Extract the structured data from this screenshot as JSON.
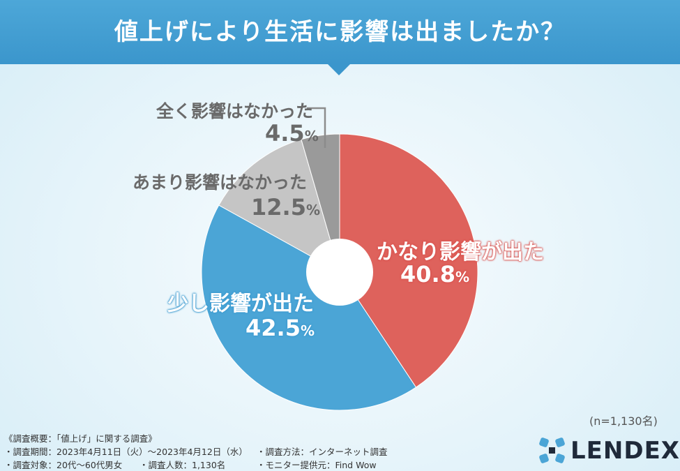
{
  "header": {
    "title": "値上げにより生活に影響は出ましたか？"
  },
  "chart_data": {
    "type": "pie",
    "title": "値上げにより生活に影響は出ましたか？",
    "slices": [
      {
        "label": "かなり影響が出た",
        "value": 40.8,
        "color": "#de625c"
      },
      {
        "label": "少し影響が出た",
        "value": 42.5,
        "color": "#4ba5d6"
      },
      {
        "label": "あまり影響はなかった",
        "value": 12.5,
        "color": "#c5c5c5"
      },
      {
        "label": "全く影響はなかった",
        "value": 4.5,
        "color": "#9a9a9a"
      }
    ],
    "unit": "%",
    "sample_note": "(n=1,130名)"
  },
  "labels": {
    "s0_num": "40.8",
    "s1_num": "42.5",
    "s2_num": "12.5",
    "s3_num": "4.5",
    "unit": "%"
  },
  "footer": {
    "l1": "《調査概要：「値上げ」に関する調査》",
    "l2a": "・調査期間：2023年4月11日（火）〜2023年4月12日（水）",
    "l2b": "・調査方法：インターネット調査",
    "l3a": "・調査対象：20代〜60代男女",
    "l3b": "・調査人数：1,130名",
    "l3c": "・モニター提供元：Find Wow"
  },
  "logo": {
    "text": "LENDEX",
    "icon": "lendex-logo-icon"
  }
}
